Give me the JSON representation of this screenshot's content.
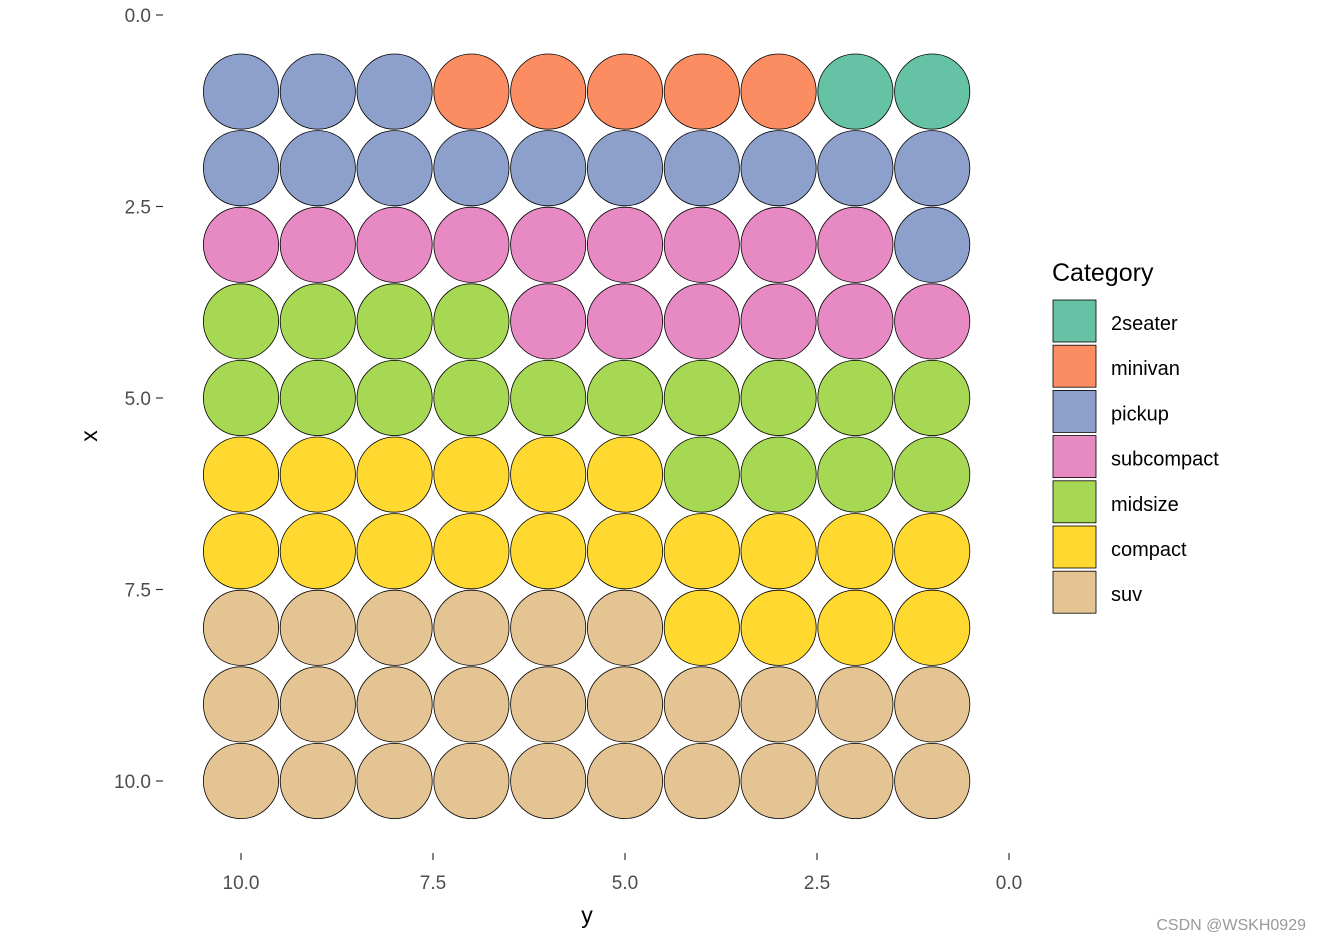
{
  "chart_data": {
    "type": "scatter",
    "subtype": "waffle",
    "xlabel": "y",
    "ylabel": "x",
    "x_axis": {
      "range": [
        0,
        10
      ],
      "reversed": true,
      "ticks": [
        10.0,
        7.5,
        5.0,
        2.5,
        0.0
      ],
      "tick_labels": [
        "10.0",
        "7.5",
        "5.0",
        "2.5",
        "0.0"
      ]
    },
    "y_axis": {
      "range": [
        0,
        10
      ],
      "reversed": true,
      "ticks": [
        0.0,
        2.5,
        5.0,
        7.5,
        10.0
      ],
      "tick_labels": [
        "0.0",
        "2.5",
        "5.0",
        "7.5",
        "10.0"
      ]
    },
    "grid": false,
    "legend": {
      "title": "Category",
      "placement": "right",
      "entries": [
        {
          "name": "2seater",
          "color": "#66C2A5",
          "count": 2
        },
        {
          "name": "minivan",
          "color": "#FC8D62",
          "count": 5
        },
        {
          "name": "pickup",
          "color": "#8DA0CB",
          "count": 14
        },
        {
          "name": "subcompact",
          "color": "#E78AC3",
          "count": 15
        },
        {
          "name": "midsize",
          "color": "#A6D854",
          "count": 18
        },
        {
          "name": "compact",
          "color": "#FFD92F",
          "count": 20
        },
        {
          "name": "suv",
          "color": "#E5C494",
          "count": 26
        }
      ]
    },
    "columns_y": [
      10,
      9,
      8,
      7,
      6,
      5,
      4,
      3,
      2,
      1
    ],
    "rows": [
      {
        "x": 1,
        "cells": [
          "pickup",
          "pickup",
          "pickup",
          "minivan",
          "minivan",
          "minivan",
          "minivan",
          "minivan",
          "2seater",
          "2seater"
        ]
      },
      {
        "x": 2,
        "cells": [
          "pickup",
          "pickup",
          "pickup",
          "pickup",
          "pickup",
          "pickup",
          "pickup",
          "pickup",
          "pickup",
          "pickup"
        ]
      },
      {
        "x": 3,
        "cells": [
          "subcompact",
          "subcompact",
          "subcompact",
          "subcompact",
          "subcompact",
          "subcompact",
          "subcompact",
          "subcompact",
          "subcompact",
          "pickup"
        ]
      },
      {
        "x": 4,
        "cells": [
          "midsize",
          "midsize",
          "midsize",
          "midsize",
          "subcompact",
          "subcompact",
          "subcompact",
          "subcompact",
          "subcompact",
          "subcompact"
        ]
      },
      {
        "x": 5,
        "cells": [
          "midsize",
          "midsize",
          "midsize",
          "midsize",
          "midsize",
          "midsize",
          "midsize",
          "midsize",
          "midsize",
          "midsize"
        ]
      },
      {
        "x": 6,
        "cells": [
          "compact",
          "compact",
          "compact",
          "compact",
          "compact",
          "compact",
          "midsize",
          "midsize",
          "midsize",
          "midsize"
        ]
      },
      {
        "x": 7,
        "cells": [
          "compact",
          "compact",
          "compact",
          "compact",
          "compact",
          "compact",
          "compact",
          "compact",
          "compact",
          "compact"
        ]
      },
      {
        "x": 8,
        "cells": [
          "suv",
          "suv",
          "suv",
          "suv",
          "suv",
          "suv",
          "compact",
          "compact",
          "compact",
          "compact"
        ]
      },
      {
        "x": 9,
        "cells": [
          "suv",
          "suv",
          "suv",
          "suv",
          "suv",
          "suv",
          "suv",
          "suv",
          "suv",
          "suv"
        ]
      },
      {
        "x": 10,
        "cells": [
          "suv",
          "suv",
          "suv",
          "suv",
          "suv",
          "suv",
          "suv",
          "suv",
          "suv",
          "suv"
        ]
      }
    ]
  },
  "watermark": "CSDN @WSKH0929"
}
